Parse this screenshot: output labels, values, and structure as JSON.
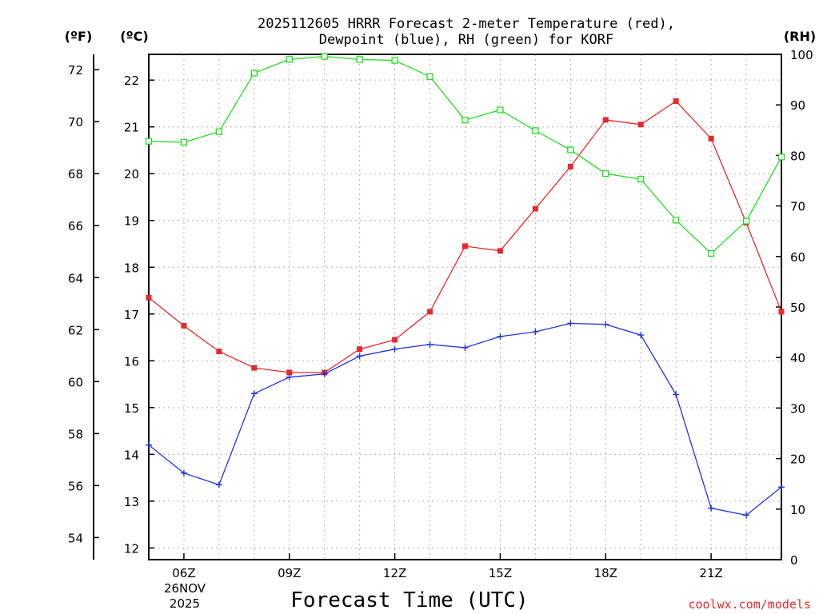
{
  "chart_data": {
    "type": "line",
    "title_line1": "2025112605 HRRR Forecast 2-meter Temperature (red),",
    "title_line2": "Dewpoint (blue), RH (green) for KORF",
    "xlabel": "Forecast Time (UTC)",
    "credit": "coolwx.com/models",
    "units": {
      "fahrenheit": "(ºF)",
      "celsius": "(ºC)",
      "rh": "(RH)"
    },
    "x_hours": [
      5,
      6,
      7,
      8,
      9,
      10,
      11,
      12,
      13,
      14,
      15,
      16,
      17,
      18,
      19,
      20,
      21,
      22,
      23
    ],
    "x_ticks": [
      {
        "hour": 6,
        "label": "06Z"
      },
      {
        "hour": 9,
        "label": "09Z"
      },
      {
        "hour": 12,
        "label": "12Z"
      },
      {
        "hour": 15,
        "label": "15Z"
      },
      {
        "hour": 18,
        "label": "18Z"
      },
      {
        "hour": 21,
        "label": "21Z"
      }
    ],
    "date_line1": "26NOV",
    "date_line2": "2025",
    "xlim": [
      5,
      23
    ],
    "celsius_axis": {
      "ylim": [
        11.75,
        22.55
      ],
      "ticks": [
        "12",
        "13",
        "14",
        "15",
        "16",
        "17",
        "18",
        "19",
        "20",
        "21",
        "22"
      ]
    },
    "fahrenheit_axis": {
      "ticks": [
        "54",
        "56",
        "58",
        "60",
        "62",
        "64",
        "66",
        "68",
        "70",
        "72"
      ]
    },
    "rh_axis": {
      "ylim": [
        0,
        100
      ],
      "ticks": [
        "0",
        "10",
        "20",
        "30",
        "40",
        "50",
        "60",
        "70",
        "80",
        "90",
        "100"
      ]
    },
    "series": [
      {
        "name": "Temperature",
        "color": "#e8282a",
        "marker": "filled-square",
        "axis": "celsius",
        "values": [
          17.35,
          16.75,
          16.2,
          15.85,
          15.75,
          15.75,
          16.25,
          16.45,
          17.05,
          18.45,
          18.35,
          19.25,
          20.15,
          21.15,
          21.05,
          21.55,
          20.75,
          18.95,
          17.05
        ]
      },
      {
        "name": "Dewpoint",
        "color": "#2233dd",
        "marker": "plus",
        "axis": "celsius",
        "values": [
          14.2,
          13.6,
          13.35,
          15.3,
          15.65,
          15.72,
          16.1,
          16.25,
          16.35,
          16.28,
          16.52,
          16.62,
          16.8,
          16.78,
          16.55,
          15.28,
          12.85,
          12.7,
          13.3
        ]
      },
      {
        "name": "RH",
        "color": "#22dd22",
        "marker": "open-square",
        "axis": "rh",
        "values": [
          82.8,
          82.6,
          84.7,
          96.3,
          99.0,
          99.6,
          99.0,
          98.8,
          95.6,
          87.0,
          89.0,
          84.9,
          81.1,
          76.4,
          75.3,
          67.2,
          60.6,
          67.0,
          79.7
        ]
      }
    ]
  }
}
